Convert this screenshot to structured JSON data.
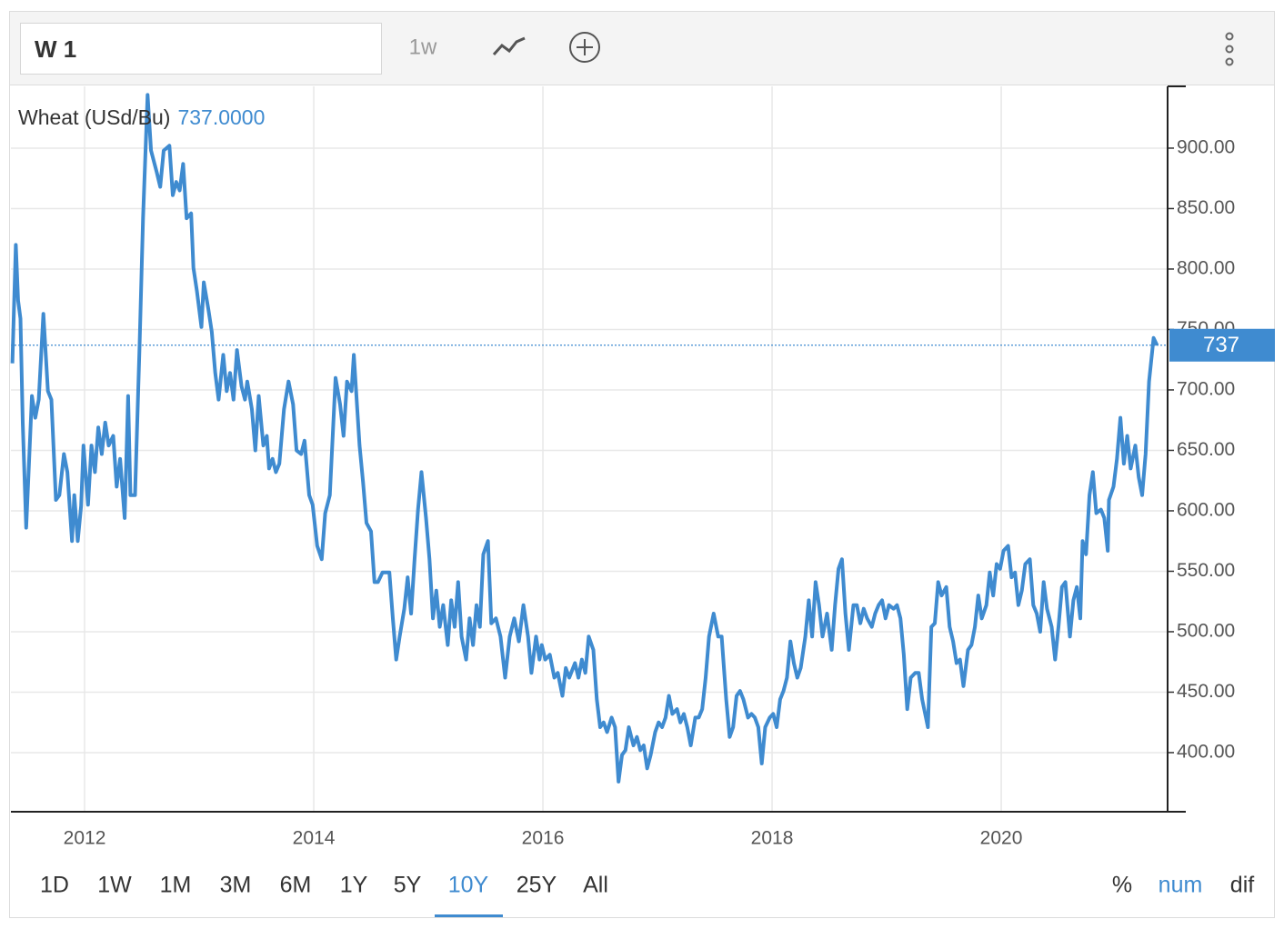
{
  "toolbar": {
    "symbol": "W 1",
    "interval": "1w"
  },
  "ranges": {
    "options": [
      "1D",
      "1W",
      "1M",
      "3M",
      "6M",
      "1Y",
      "5Y",
      "10Y",
      "25Y",
      "All"
    ],
    "active": "10Y"
  },
  "modes": {
    "options": [
      "%",
      "num",
      "dif"
    ],
    "active": "num"
  },
  "chart_data": {
    "type": "line",
    "current": {
      "value": 737,
      "label": "737.0000"
    },
    "xlim": [
      2011.357,
      2021.452
    ],
    "xticks": [
      2012,
      2014,
      2016,
      2018,
      2020
    ],
    "ylim": [
      351.1,
      951.1
    ],
    "yticks": [
      {
        "value": 400,
        "label": "400.00"
      },
      {
        "value": 450,
        "label": "450.00"
      },
      {
        "value": 500,
        "label": "500.00"
      },
      {
        "value": 550,
        "label": "550.00"
      },
      {
        "value": 600,
        "label": "600.00"
      },
      {
        "value": 650,
        "label": "650.00"
      },
      {
        "value": 700,
        "label": "700.00"
      },
      {
        "value": 750,
        "label": "750.00"
      },
      {
        "value": 800,
        "label": "800.00"
      },
      {
        "value": 850,
        "label": "850.00"
      },
      {
        "value": 900,
        "label": "900.00"
      }
    ],
    "grid": true,
    "x": [
      2011.37,
      2011.4,
      2011.42,
      2011.44,
      2011.46,
      2011.49,
      2011.54,
      2011.57,
      2011.6,
      2011.64,
      2011.68,
      2011.71,
      2011.75,
      2011.78,
      2011.82,
      2011.85,
      2011.89,
      2011.91,
      2011.94,
      2011.97,
      2011.99,
      2012.03,
      2012.06,
      2012.09,
      2012.12,
      2012.15,
      2012.18,
      2012.21,
      2012.25,
      2012.28,
      2012.31,
      2012.35,
      2012.38,
      2012.4,
      2012.44,
      2012.48,
      2012.51,
      2012.55,
      2012.58,
      2012.63,
      2012.66,
      2012.69,
      2012.74,
      2012.77,
      2012.8,
      2012.83,
      2012.86,
      2012.89,
      2012.93,
      2012.95,
      2012.98,
      2013.02,
      2013.04,
      2013.08,
      2013.11,
      2013.14,
      2013.17,
      2013.21,
      2013.24,
      2013.27,
      2013.3,
      2013.33,
      2013.37,
      2013.4,
      2013.42,
      2013.46,
      2013.49,
      2013.52,
      2013.56,
      2013.59,
      2013.61,
      2013.64,
      2013.67,
      2013.7,
      2013.74,
      2013.78,
      2013.82,
      2013.85,
      2013.89,
      2013.92,
      2013.96,
      2013.99,
      2014.03,
      2014.07,
      2014.1,
      2014.14,
      2014.19,
      2014.23,
      2014.26,
      2014.29,
      2014.33,
      2014.35,
      2014.4,
      2014.43,
      2014.46,
      2014.5,
      2014.53,
      2014.56,
      2014.6,
      2014.66,
      2014.69,
      2014.72,
      2014.75,
      2014.79,
      2014.82,
      2014.85,
      2014.88,
      2014.91,
      2014.94,
      2014.98,
      2015.01,
      2015.04,
      2015.07,
      2015.1,
      2015.13,
      2015.17,
      2015.2,
      2015.23,
      2015.26,
      2015.29,
      2015.33,
      2015.36,
      2015.39,
      2015.42,
      2015.45,
      2015.48,
      2015.52,
      2015.55,
      2015.59,
      2015.63,
      2015.67,
      2015.71,
      2015.75,
      2015.79,
      2015.83,
      2015.87,
      2015.9,
      2015.94,
      2015.97,
      2015.99,
      2016.02,
      2016.06,
      2016.1,
      2016.13,
      2016.17,
      2016.2,
      2016.23,
      2016.28,
      2016.31,
      2016.34,
      2016.37,
      2016.4,
      2016.44,
      2016.47,
      2016.5,
      2016.53,
      2016.56,
      2016.6,
      2016.63,
      2016.66,
      2016.69,
      2016.72,
      2016.75,
      2016.79,
      2016.82,
      2016.85,
      2016.88,
      2016.91,
      2016.94,
      2016.98,
      2017.01,
      2017.04,
      2017.07,
      2017.1,
      2017.13,
      2017.17,
      2017.2,
      2017.23,
      2017.26,
      2017.29,
      2017.33,
      2017.36,
      2017.39,
      2017.42,
      2017.45,
      2017.49,
      2017.53,
      2017.56,
      2017.6,
      2017.63,
      2017.66,
      2017.69,
      2017.72,
      2017.75,
      2017.79,
      2017.82,
      2017.85,
      2017.88,
      2017.91,
      2017.94,
      2017.98,
      2018.01,
      2018.04,
      2018.07,
      2018.1,
      2018.13,
      2018.16,
      2018.19,
      2018.22,
      2018.25,
      2018.29,
      2018.32,
      2018.35,
      2018.38,
      2018.41,
      2018.44,
      2018.48,
      2018.52,
      2018.55,
      2018.58,
      2018.61,
      2018.64,
      2018.67,
      2018.71,
      2018.74,
      2018.77,
      2018.8,
      2018.83,
      2018.87,
      2018.9,
      2018.93,
      2018.96,
      2018.99,
      2019.02,
      2019.06,
      2019.09,
      2019.12,
      2019.15,
      2019.18,
      2019.21,
      2019.25,
      2019.28,
      2019.31,
      2019.36,
      2019.39,
      2019.42,
      2019.45,
      2019.48,
      2019.52,
      2019.55,
      2019.58,
      2019.61,
      2019.64,
      2019.67,
      2019.71,
      2019.74,
      2019.77,
      2019.8,
      2019.83,
      2019.87,
      2019.9,
      2019.93,
      2019.96,
      2019.99,
      2020.02,
      2020.06,
      2020.09,
      2020.12,
      2020.15,
      2020.18,
      2020.21,
      2020.25,
      2020.28,
      2020.31,
      2020.34,
      2020.37,
      2020.4,
      2020.44,
      2020.47,
      2020.5,
      2020.53,
      2020.56,
      2020.6,
      2020.63,
      2020.66,
      2020.69,
      2020.71,
      2020.74,
      2020.77,
      2020.8,
      2020.83,
      2020.87,
      2020.9,
      2020.93,
      2020.94,
      2020.98,
      2021.01,
      2021.04,
      2021.07,
      2021.1,
      2021.13,
      2021.17,
      2021.2,
      2021.23,
      2021.26,
      2021.29,
      2021.33,
      2021.36
    ],
    "series": [
      {
        "name": "Wheat (USd/Bu)",
        "color": "#3f8bd0",
        "values": [
          722,
          820,
          774,
          759,
          673,
          586,
          695,
          677,
          692,
          763,
          699,
          692,
          609,
          613,
          647,
          632,
          575,
          613,
          575,
          604,
          654,
          605,
          654,
          632,
          669,
          647,
          673,
          654,
          662,
          620,
          643,
          594,
          695,
          613,
          613,
          737,
          842,
          944,
          898,
          880,
          868,
          898,
          902,
          861,
          872,
          865,
          887,
          842,
          846,
          801,
          782,
          752,
          789,
          767,
          748,
          714,
          692,
          729,
          699,
          714,
          692,
          733,
          703,
          692,
          707,
          684,
          650,
          695,
          654,
          662,
          635,
          643,
          632,
          639,
          684,
          707,
          688,
          650,
          647,
          658,
          613,
          605,
          571,
          560,
          598,
          613,
          710,
          688,
          662,
          707,
          699,
          729,
          654,
          624,
          590,
          583,
          541,
          541,
          549,
          549,
          511,
          477,
          496,
          519,
          545,
          515,
          560,
          601,
          632,
          594,
          560,
          511,
          534,
          504,
          522,
          489,
          526,
          504,
          541,
          496,
          477,
          511,
          489,
          522,
          504,
          564,
          575,
          507,
          511,
          496,
          462,
          496,
          511,
          492,
          522,
          496,
          466,
          496,
          477,
          489,
          477,
          481,
          462,
          466,
          447,
          470,
          462,
          474,
          462,
          477,
          466,
          496,
          485,
          444,
          421,
          425,
          417,
          429,
          421,
          376,
          398,
          402,
          421,
          406,
          413,
          402,
          406,
          387,
          398,
          417,
          425,
          421,
          429,
          447,
          432,
          436,
          425,
          432,
          421,
          406,
          429,
          429,
          436,
          462,
          496,
          515,
          496,
          496,
          444,
          413,
          421,
          447,
          451,
          444,
          429,
          432,
          429,
          421,
          391,
          421,
          429,
          432,
          421,
          444,
          451,
          462,
          492,
          474,
          462,
          470,
          496,
          526,
          496,
          541,
          522,
          496,
          515,
          485,
          522,
          552,
          560,
          515,
          485,
          522,
          522,
          507,
          519,
          511,
          504,
          515,
          522,
          526,
          511,
          522,
          519,
          522,
          511,
          481,
          436,
          462,
          466,
          466,
          444,
          421,
          504,
          507,
          541,
          530,
          537,
          504,
          492,
          474,
          477,
          455,
          485,
          489,
          504,
          530,
          511,
          522,
          549,
          530,
          556,
          552,
          567,
          571,
          545,
          549,
          522,
          534,
          556,
          560,
          522,
          515,
          500,
          541,
          519,
          504,
          477,
          504,
          537,
          541,
          496,
          526,
          537,
          511,
          575,
          564,
          613,
          632,
          598,
          601,
          594,
          567,
          609,
          620,
          643,
          677,
          639,
          662,
          635,
          654,
          628,
          613,
          647,
          707,
          743,
          737
        ]
      }
    ]
  }
}
